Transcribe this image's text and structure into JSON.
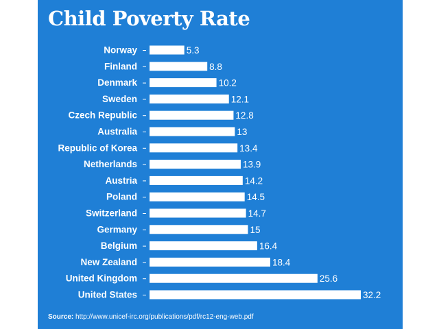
{
  "chart_data": {
    "type": "bar",
    "orientation": "horizontal",
    "title": "Child Poverty Rate",
    "categories": [
      "Norway",
      "Finland",
      "Denmark",
      "Sweden",
      "Czech Republic",
      "Australia",
      "Republic of Korea",
      "Netherlands",
      "Austria",
      "Poland",
      "Switzerland",
      "Germany",
      "Belgium",
      "New Zealand",
      "United Kingdom",
      "United States"
    ],
    "values": [
      5.3,
      8.8,
      10.2,
      12.1,
      12.8,
      13,
      13.4,
      13.9,
      14.2,
      14.5,
      14.7,
      15,
      16.4,
      18.4,
      25.6,
      32.2
    ],
    "value_labels": [
      "5.3",
      "8.8",
      "10.2",
      "12.1",
      "12.8",
      "13",
      "13.4",
      "13.9",
      "14.2",
      "14.5",
      "14.7",
      "15",
      "16.4",
      "18.4",
      "25.6",
      "32.2"
    ],
    "xlim": [
      0,
      32.2
    ],
    "grid": false,
    "legend": "none"
  },
  "source": {
    "label": "Source:",
    "url": "http://www.unicef-irc.org/publications/pdf/rc12-eng-web.pdf"
  },
  "colors": {
    "background": "#1f7fd6",
    "bar": "#ffffff",
    "text": "#ffffff"
  }
}
